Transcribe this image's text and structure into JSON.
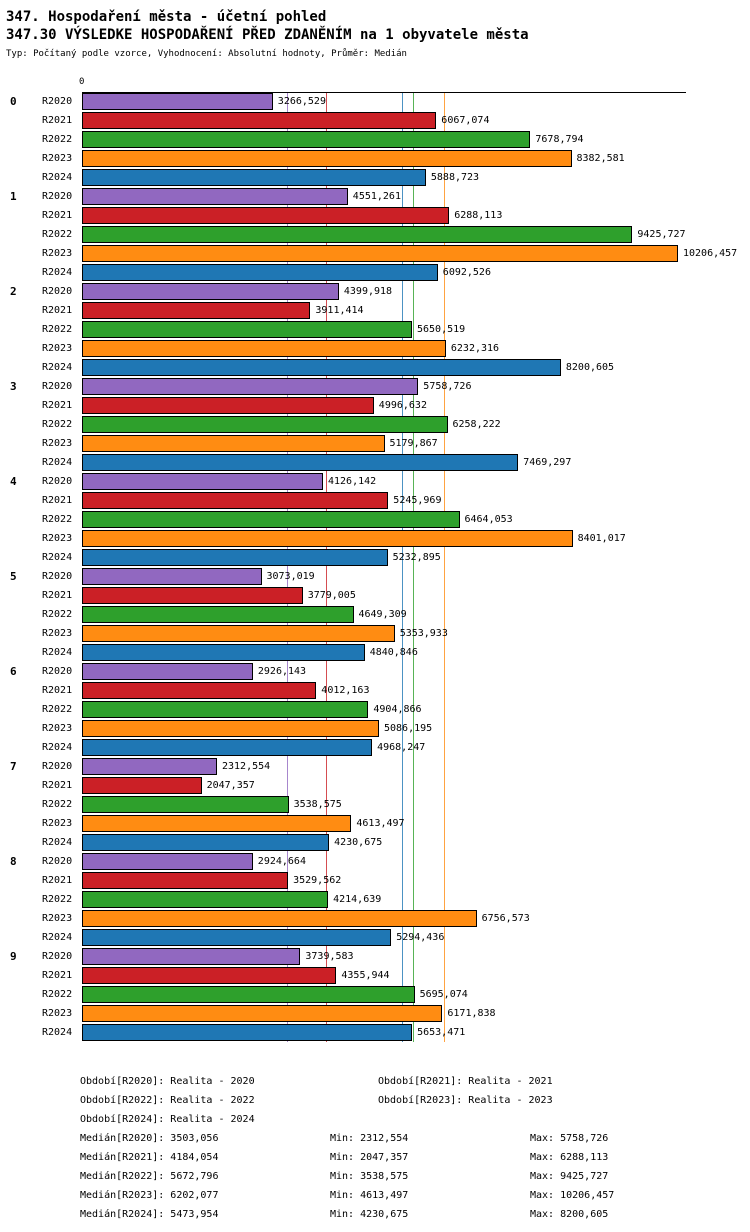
{
  "header": {
    "title_line1": "347. Hospodaření města - účetní pohled",
    "title_line2": "347.30 VÝSLEDKE HOSPODAŘENÍ PŘED ZDANĚNÍM na 1 obyvatele města",
    "subtitle": "Typ: Počítaný podle vzorce, Vyhodnocení: Absolutní hodnoty, Průměr: Medián"
  },
  "chart_data": {
    "type": "bar",
    "orientation": "horizontal",
    "axis": {
      "origin_label": "0",
      "max": 10343
    },
    "groups": [
      "0",
      "1",
      "2",
      "3",
      "4",
      "5",
      "6",
      "7",
      "8",
      "9"
    ],
    "series": [
      {
        "name": "R2020",
        "color": "#9168c0",
        "median": "3503,056",
        "values": [
          "3266,529",
          "4551,261",
          "4399,918",
          "5758,726",
          "4126,142",
          "3073,019",
          "2926,143",
          "2312,554",
          "2924,664",
          "3739,583"
        ]
      },
      {
        "name": "R2021",
        "color": "#cb2026",
        "median": "4184,054",
        "values": [
          "6067,074",
          "6288,113",
          "3911,414",
          "4996,632",
          "5245,969",
          "3779,005",
          "4012,163",
          "2047,357",
          "3529,562",
          "4355,944"
        ]
      },
      {
        "name": "R2022",
        "color": "#2ea02c",
        "median": "5672,796",
        "values": [
          "7678,794",
          "9425,727",
          "5650,519",
          "6258,222",
          "6464,053",
          "4649,309",
          "4904,866",
          "3538,575",
          "4214,639",
          "5695,074"
        ]
      },
      {
        "name": "R2023",
        "color": "#ff8c12",
        "median": "6202,077",
        "values": [
          "8382,581",
          "10206,457",
          "6232,316",
          "5179,867",
          "8401,017",
          "5353,933",
          "5086,195",
          "4613,497",
          "6756,573",
          "6171,838"
        ]
      },
      {
        "name": "R2024",
        "color": "#1f77b4",
        "median": "5473,954",
        "values": [
          "5888,723",
          "6092,526",
          "8200,605",
          "7469,297",
          "5232,895",
          "4840,846",
          "4968,247",
          "4230,675",
          "5294,436",
          "5653,471"
        ]
      }
    ]
  },
  "legend": {
    "items": [
      "Období[R2020]: Realita - 2020",
      "Období[R2021]: Realita - 2021",
      "Období[R2022]: Realita - 2022",
      "Období[R2023]: Realita - 2023",
      "Období[R2024]: Realita - 2024"
    ]
  },
  "stats": {
    "rows": [
      {
        "median": "Medián[R2020]: 3503,056",
        "min": "Min: 2312,554",
        "max": "Max: 5758,726"
      },
      {
        "median": "Medián[R2021]: 4184,054",
        "min": "Min: 2047,357",
        "max": "Max: 6288,113"
      },
      {
        "median": "Medián[R2022]: 5672,796",
        "min": "Min: 3538,575",
        "max": "Max: 9425,727"
      },
      {
        "median": "Medián[R2023]: 6202,077",
        "min": "Min: 4613,497",
        "max": "Max: 10206,457"
      },
      {
        "median": "Medián[R2024]: 5473,954",
        "min": "Min: 4230,675",
        "max": "Max: 8200,605"
      }
    ]
  }
}
